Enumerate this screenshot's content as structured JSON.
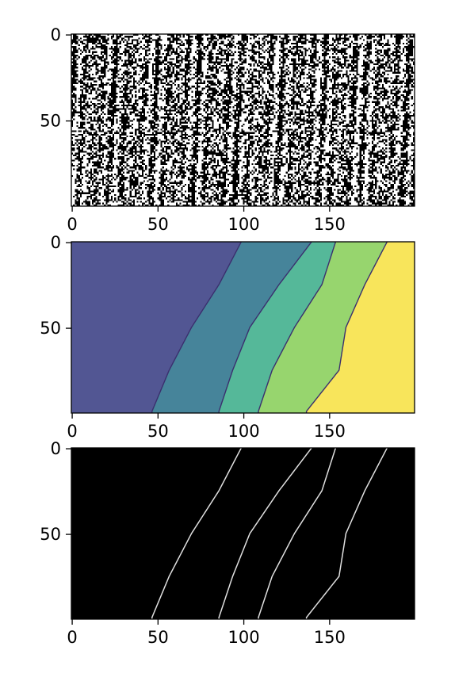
{
  "chart_data": [
    {
      "type": "heatmap",
      "title": "",
      "xlabel": "",
      "ylabel": "",
      "image_size": [
        200,
        100
      ],
      "colormap": "binary",
      "xlim": [
        0,
        200
      ],
      "ylim": [
        100,
        0
      ],
      "xticks": [
        0,
        50,
        100,
        150
      ],
      "yticks": [
        0,
        50
      ],
      "seed": 7
    },
    {
      "type": "heatmap",
      "title": "",
      "xlabel": "",
      "ylabel": "",
      "image_size": [
        200,
        100
      ],
      "colormap": "viridis",
      "xlim": [
        0,
        200
      ],
      "ylim": [
        100,
        0
      ],
      "xticks": [
        0,
        50,
        100,
        150
      ],
      "yticks": [
        0,
        50
      ],
      "region_colors": [
        "#525693",
        "#46849a",
        "#55b899",
        "#97d56e",
        "#f8e55b"
      ],
      "boundaries": [
        {
          "y": [
            0,
            25,
            50,
            75,
            99
          ],
          "x": [
            99,
            86,
            70,
            57,
            47
          ]
        },
        {
          "y": [
            0,
            25,
            50,
            75,
            99
          ],
          "x": [
            140,
            121,
            104,
            94,
            86
          ]
        },
        {
          "y": [
            0,
            25,
            50,
            75,
            99
          ],
          "x": [
            154,
            146,
            130,
            117,
            109
          ]
        },
        {
          "y": [
            0,
            25,
            50,
            75,
            99
          ],
          "x": [
            184,
            171,
            160,
            156,
            137
          ]
        }
      ]
    },
    {
      "type": "heatmap",
      "title": "",
      "xlabel": "",
      "ylabel": "",
      "image_size": [
        200,
        100
      ],
      "colormap": "gray",
      "xlim": [
        0,
        200
      ],
      "ylim": [
        100,
        0
      ],
      "xticks": [
        0,
        50,
        100,
        150
      ],
      "yticks": [
        0,
        50
      ],
      "edge_color": "#e0e0e0",
      "background_color": "#000000",
      "boundaries": [
        {
          "y": [
            0,
            25,
            50,
            75,
            99
          ],
          "x": [
            99,
            86,
            70,
            57,
            47
          ]
        },
        {
          "y": [
            0,
            25,
            50,
            75,
            99
          ],
          "x": [
            140,
            121,
            104,
            94,
            86
          ]
        },
        {
          "y": [
            0,
            25,
            50,
            75,
            99
          ],
          "x": [
            154,
            146,
            130,
            117,
            109
          ]
        },
        {
          "y": [
            0,
            25,
            50,
            75,
            99
          ],
          "x": [
            184,
            171,
            160,
            156,
            137
          ]
        }
      ]
    }
  ]
}
